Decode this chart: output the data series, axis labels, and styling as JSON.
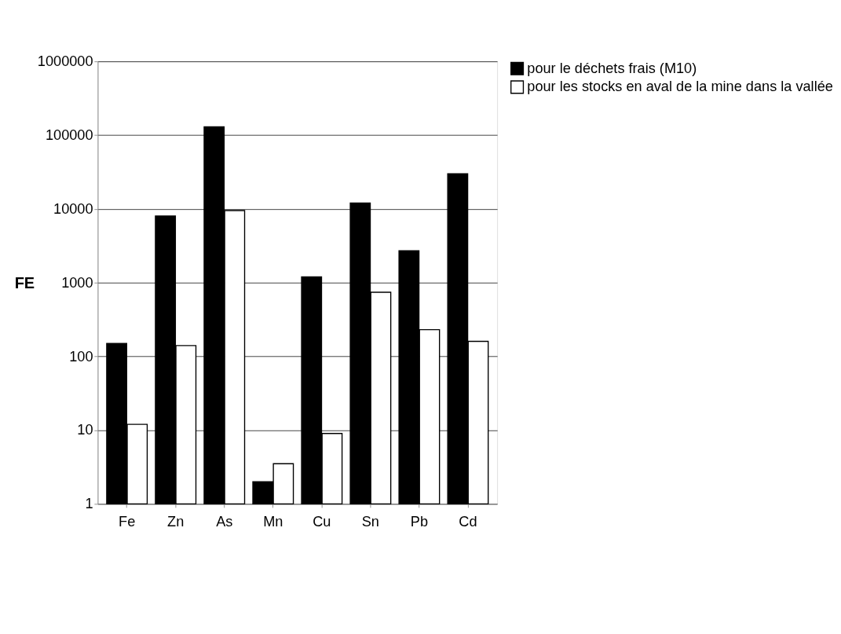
{
  "chart_data": {
    "type": "bar",
    "ylabel": "FE",
    "categories": [
      "Fe",
      "Zn",
      "As",
      "Mn",
      "Cu",
      "Sn",
      "Pb",
      "Cd"
    ],
    "series": [
      {
        "name": "pour le déchets frais (M10)",
        "color": "#000000",
        "values": [
          150,
          8000,
          130000,
          2,
          1200,
          12000,
          2700,
          30000
        ]
      },
      {
        "name": "pour les stocks en aval de la mine dans la vallée",
        "color": "#ffffff",
        "values": [
          12,
          140,
          9500,
          3.5,
          9,
          740,
          230,
          160
        ]
      }
    ],
    "log": true,
    "ylim": [
      1,
      1000000
    ],
    "yticks": [
      1,
      10,
      100,
      1000,
      10000,
      100000,
      1000000
    ],
    "grid": "y",
    "legend": "right"
  }
}
